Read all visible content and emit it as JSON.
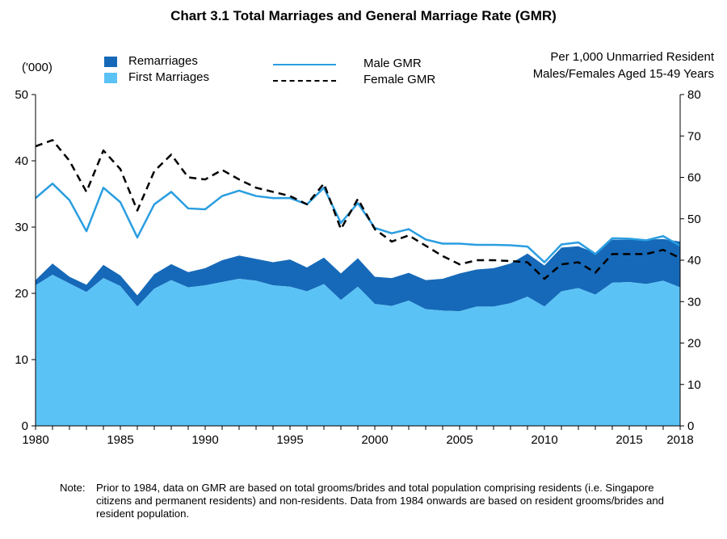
{
  "chart_data": {
    "type": "area",
    "title": "Chart 3.1  Total Marriages and General Marriage Rate (GMR)",
    "left_axis": {
      "unit": "('000)",
      "ylim": [
        0,
        50
      ],
      "ticks": [
        "0",
        "10",
        "20",
        "30",
        "40",
        "50"
      ]
    },
    "right_axis": {
      "unit_line1": "Per 1,000 Unmarried Resident",
      "unit_line2": "Males/Females Aged 15-49 Years",
      "ylim": [
        0,
        80
      ],
      "ticks": [
        "0",
        "10",
        "20",
        "30",
        "40",
        "50",
        "60",
        "70",
        "80"
      ]
    },
    "x_ticks": [
      "1980",
      "1985",
      "1990",
      "1995",
      "2000",
      "2005",
      "2010",
      "2015",
      "2018"
    ],
    "x": [
      1980,
      1981,
      1982,
      1983,
      1984,
      1985,
      1986,
      1987,
      1988,
      1989,
      1990,
      1991,
      1992,
      1993,
      1994,
      1995,
      1996,
      1997,
      1998,
      1999,
      2000,
      2001,
      2002,
      2003,
      2004,
      2005,
      2006,
      2007,
      2008,
      2009,
      2010,
      2011,
      2012,
      2013,
      2014,
      2015,
      2016,
      2017,
      2018
    ],
    "series": [
      {
        "name": "First Marriages",
        "axis": "left",
        "color": "#5bc2f5",
        "values": [
          21.2,
          22.8,
          21.5,
          20.2,
          22.3,
          21.1,
          18.0,
          20.7,
          22.0,
          20.9,
          21.2,
          21.7,
          22.2,
          21.9,
          21.2,
          21.0,
          20.3,
          21.4,
          19.0,
          21.0,
          18.4,
          18.1,
          18.9,
          17.6,
          17.4,
          17.3,
          18.0,
          18.0,
          18.5,
          19.5,
          18.0,
          20.3,
          20.8,
          19.8,
          21.6,
          21.7,
          21.4,
          21.9,
          20.9
        ]
      },
      {
        "name": "Remarriages",
        "axis": "left",
        "color": "#1669b8",
        "values": [
          0.8,
          1.7,
          1.0,
          1.1,
          2.0,
          1.6,
          1.7,
          2.2,
          2.4,
          2.3,
          2.6,
          3.3,
          3.5,
          3.3,
          3.5,
          4.1,
          3.6,
          4.0,
          4.0,
          4.3,
          4.1,
          4.2,
          4.2,
          4.4,
          4.8,
          5.7,
          5.6,
          5.8,
          6.0,
          6.5,
          6.2,
          6.6,
          6.3,
          6.3,
          6.5,
          6.4,
          6.7,
          6.3,
          6.9
        ]
      },
      {
        "name": "Male GMR",
        "axis": "right",
        "color": "#2a9ee0",
        "style": "solid",
        "values": [
          55,
          58.5,
          54.5,
          47,
          57.5,
          54,
          45.5,
          53.5,
          56.5,
          52.5,
          52.3,
          55.5,
          56.8,
          55.5,
          55,
          55,
          53.5,
          57.5,
          49,
          53.8,
          47.8,
          46.5,
          47.5,
          45,
          44,
          44,
          43.7,
          43.7,
          43.6,
          43.3,
          39.5,
          43.8,
          44.3,
          41.5,
          45.3,
          45.2,
          44.8,
          45.8,
          43.5
        ]
      },
      {
        "name": "Female GMR",
        "axis": "right",
        "color": "#000000",
        "style": "dashed",
        "values": [
          67.5,
          69,
          64,
          56.5,
          66.5,
          62,
          52,
          61.5,
          65.5,
          60,
          59.5,
          61.8,
          59.5,
          57.5,
          56.5,
          55.5,
          53.5,
          58.5,
          47.5,
          54.8,
          47.5,
          44.5,
          46,
          43.5,
          41,
          39,
          40,
          40,
          39.8,
          39.5,
          35.5,
          39,
          39.5,
          37,
          41.5,
          41.5,
          41.5,
          42.5,
          40.5
        ]
      }
    ],
    "legend": [
      {
        "label": "Remarriages",
        "color": "#1669b8"
      },
      {
        "label": "First Marriages",
        "color": "#5bc2f5"
      },
      {
        "label": "Male GMR",
        "color": "#2a9ee0"
      },
      {
        "label": "Female GMR",
        "color": "#000000"
      }
    ],
    "note_lead": "Note:",
    "note_text": "Prior to 1984, data on GMR are based on total grooms/brides and total population comprising residents (i.e. Singapore citizens and permanent residents) and non-residents. Data from 1984 onwards are based on resident grooms/brides and resident population."
  }
}
